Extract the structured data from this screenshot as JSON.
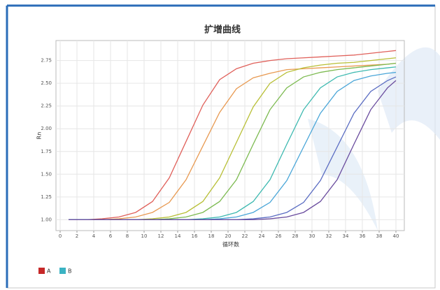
{
  "chart_data": {
    "type": "line",
    "title": "扩增曲线",
    "x_label": "循环数",
    "y_label": "Rn",
    "x": [
      1,
      3,
      5,
      7,
      9,
      11,
      13,
      15,
      17,
      19,
      21,
      23,
      25,
      27,
      29,
      31,
      33,
      35,
      37,
      39,
      40
    ],
    "xlim": [
      -0.5,
      41
    ],
    "ylim": [
      0.88,
      2.97
    ],
    "xticks": [
      0,
      2,
      4,
      6,
      8,
      10,
      12,
      14,
      16,
      18,
      20,
      22,
      24,
      26,
      28,
      30,
      32,
      34,
      36,
      38,
      40
    ],
    "yticks": [
      {
        "value": 1,
        "label": "1.00"
      },
      {
        "value": 1.25,
        "label": "1.25"
      },
      {
        "value": 1.5,
        "label": "1.50"
      },
      {
        "value": 1.75,
        "label": "1.75"
      },
      {
        "value": 2,
        "label": "2.00"
      },
      {
        "value": 2.25,
        "label": "2.25"
      },
      {
        "value": 2.5,
        "label": "2.50"
      },
      {
        "value": 2.75,
        "label": "2.75"
      }
    ],
    "grid": true,
    "series": [
      {
        "color": "#e0605a",
        "values": [
          1.0,
          1.0,
          1.01,
          1.03,
          1.08,
          1.2,
          1.46,
          1.86,
          2.26,
          2.54,
          2.66,
          2.72,
          2.75,
          2.77,
          2.78,
          2.79,
          2.8,
          2.81,
          2.83,
          2.85,
          2.86
        ]
      },
      {
        "color": "#e89a52",
        "values": [
          1.0,
          1.0,
          1.0,
          1.01,
          1.03,
          1.08,
          1.19,
          1.44,
          1.81,
          2.18,
          2.44,
          2.56,
          2.61,
          2.65,
          2.66,
          2.67,
          2.68,
          2.69,
          2.7,
          2.71,
          2.72
        ]
      },
      {
        "color": "#b8bf36",
        "values": [
          1.0,
          1.0,
          1.0,
          1.0,
          1.0,
          1.01,
          1.03,
          1.08,
          1.2,
          1.46,
          1.85,
          2.24,
          2.5,
          2.62,
          2.67,
          2.7,
          2.72,
          2.73,
          2.75,
          2.77,
          2.78
        ]
      },
      {
        "color": "#7cba50",
        "values": [
          1.0,
          1.0,
          1.0,
          1.0,
          1.0,
          1.0,
          1.01,
          1.03,
          1.08,
          1.2,
          1.44,
          1.83,
          2.21,
          2.45,
          2.57,
          2.62,
          2.65,
          2.67,
          2.69,
          2.71,
          2.72
        ]
      },
      {
        "color": "#3db9b0",
        "values": [
          1.0,
          1.0,
          1.0,
          1.0,
          1.0,
          1.0,
          1.0,
          1.0,
          1.01,
          1.03,
          1.08,
          1.2,
          1.44,
          1.83,
          2.21,
          2.45,
          2.57,
          2.62,
          2.65,
          2.67,
          2.68
        ]
      },
      {
        "color": "#4aa6d8",
        "values": [
          1.0,
          1.0,
          1.0,
          1.0,
          1.0,
          1.0,
          1.0,
          1.0,
          1.0,
          1.01,
          1.03,
          1.08,
          1.19,
          1.43,
          1.8,
          2.17,
          2.41,
          2.53,
          2.58,
          2.61,
          2.62
        ]
      },
      {
        "color": "#5a6cc2",
        "values": [
          1.0,
          1.0,
          1.0,
          1.0,
          1.0,
          1.0,
          1.0,
          1.0,
          1.0,
          1.0,
          1.0,
          1.01,
          1.03,
          1.08,
          1.19,
          1.43,
          1.8,
          2.17,
          2.41,
          2.53,
          2.57
        ]
      },
      {
        "color": "#6a4c9e",
        "values": [
          1.0,
          1.0,
          1.0,
          1.0,
          1.0,
          1.0,
          1.0,
          1.0,
          1.0,
          1.0,
          1.0,
          1.0,
          1.01,
          1.03,
          1.08,
          1.2,
          1.44,
          1.83,
          2.21,
          2.45,
          2.53
        ]
      }
    ],
    "legend": [
      {
        "name": "A",
        "color": "#c62828"
      },
      {
        "name": "B",
        "color": "#3bb3c3"
      }
    ]
  }
}
